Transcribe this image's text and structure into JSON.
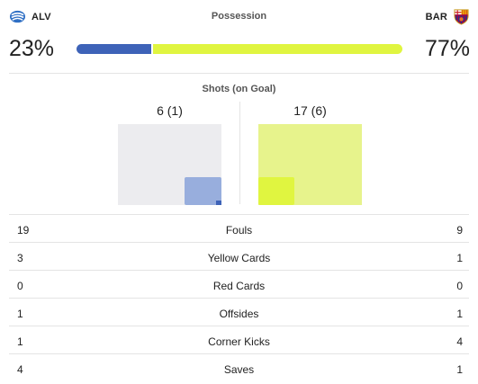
{
  "teams": {
    "home": {
      "abbr": "ALV",
      "crest_icon": "alaves-crest-icon"
    },
    "away": {
      "abbr": "BAR",
      "crest_icon": "barcelona-crest-icon"
    }
  },
  "colors": {
    "home": "#3e63b8",
    "away": "#e0f540"
  },
  "possession": {
    "title": "Possession",
    "home_text": "23%",
    "away_text": "77%",
    "home_fraction": 0.23
  },
  "shots": {
    "title": "Shots (on Goal)",
    "home_text": "6 (1)",
    "away_text": "17 (6)"
  },
  "stats": [
    {
      "label": "Fouls",
      "home": "19",
      "away": "9"
    },
    {
      "label": "Yellow Cards",
      "home": "3",
      "away": "1"
    },
    {
      "label": "Red Cards",
      "home": "0",
      "away": "0"
    },
    {
      "label": "Offsides",
      "home": "1",
      "away": "1"
    },
    {
      "label": "Corner Kicks",
      "home": "1",
      "away": "4"
    },
    {
      "label": "Saves",
      "home": "4",
      "away": "1"
    }
  ]
}
